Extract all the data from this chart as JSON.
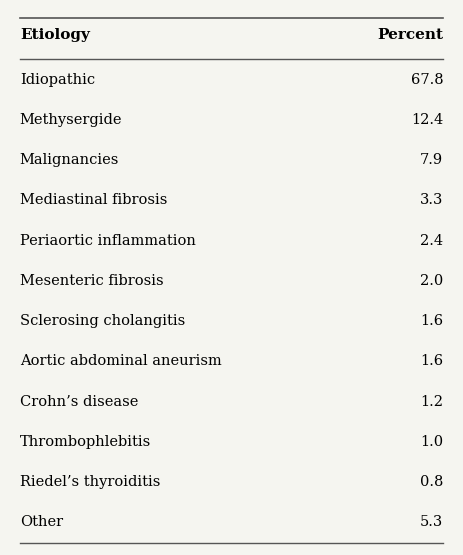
{
  "col1_header": "Etiology",
  "col2_header": "Percent",
  "rows": [
    [
      "Idiopathic",
      "67.8"
    ],
    [
      "Methysergide",
      "12.4"
    ],
    [
      "Malignancies",
      "7.9"
    ],
    [
      "Mediastinal fibrosis",
      "3.3"
    ],
    [
      "Periaortic inflammation",
      "2.4"
    ],
    [
      "Mesenteric fibrosis",
      "2.0"
    ],
    [
      "Sclerosing cholangitis",
      "1.6"
    ],
    [
      "Aortic abdominal aneurism",
      "1.6"
    ],
    [
      "Crohn’s disease",
      "1.2"
    ],
    [
      "Thrombophlebitis",
      "1.0"
    ],
    [
      "Riedel’s thyroiditis",
      "0.8"
    ],
    [
      "Other",
      "5.3"
    ]
  ],
  "background_color": "#f5f5f0",
  "text_color": "#000000",
  "header_fontsize": 11,
  "row_fontsize": 10.5,
  "line_color": "#555555"
}
